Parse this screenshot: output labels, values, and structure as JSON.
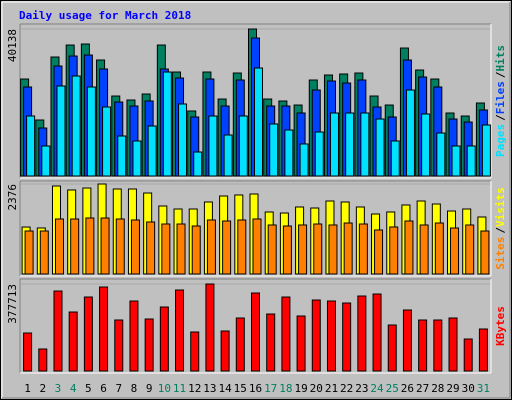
{
  "chart_data": [
    {
      "type": "bar",
      "title": "Daily usage for March 2018",
      "ylim": [
        0,
        40138
      ],
      "yticks": [
        40138
      ],
      "legend_separator": "/",
      "series": [
        {
          "name": "Hits",
          "color": "#008060",
          "values": [
            26480,
            15290,
            32490,
            35760,
            36040,
            31670,
            21840,
            20750,
            22390,
            35760,
            28390,
            17750,
            28390,
            21020,
            28120,
            40138,
            21020,
            20480,
            19380,
            26210,
            27570,
            27850,
            28120,
            21840,
            19380,
            34940,
            28940,
            26480,
            17200,
            16380,
            19930
          ]
        },
        {
          "name": "Files",
          "color": "#0040ff",
          "values": [
            24300,
            13100,
            30030,
            32760,
            33030,
            29210,
            20200,
            19110,
            20480,
            29210,
            26750,
            16110,
            26480,
            19110,
            26210,
            37670,
            19110,
            19110,
            17200,
            23480,
            25940,
            25390,
            26210,
            18840,
            16110,
            31670,
            27030,
            24300,
            15560,
            14740,
            18020
          ]
        },
        {
          "name": "Pages",
          "color": "#00e0ff",
          "values": [
            16380,
            8190,
            24570,
            27300,
            24300,
            18840,
            10920,
            9560,
            13650,
            28390,
            19660,
            6550,
            16380,
            11190,
            16380,
            29480,
            14200,
            12560,
            8740,
            12010,
            17200,
            17200,
            17200,
            15560,
            9560,
            23480,
            16930,
            11740,
            8190,
            8190,
            13920
          ]
        }
      ]
    },
    {
      "type": "bar",
      "ylim": [
        0,
        2376
      ],
      "yticks": [
        2376
      ],
      "legend_separator": "/",
      "series": [
        {
          "name": "Visits",
          "color": "#ffff00",
          "values": [
            1240,
            1215,
            2323,
            2218,
            2270,
            2376,
            2244,
            2244,
            2138,
            1795,
            1716,
            1716,
            1901,
            2059,
            2086,
            2112,
            1637,
            1610,
            1769,
            1742,
            1927,
            1901,
            1769,
            1584,
            1637,
            1822,
            1927,
            1848,
            1663,
            1716,
            1505
          ]
        },
        {
          "name": "Sites",
          "color": "#ff8000",
          "values": [
            1135,
            1135,
            1452,
            1452,
            1478,
            1478,
            1452,
            1426,
            1373,
            1320,
            1320,
            1267,
            1426,
            1399,
            1426,
            1452,
            1294,
            1267,
            1294,
            1320,
            1294,
            1346,
            1320,
            1162,
            1241,
            1399,
            1294,
            1346,
            1214,
            1294,
            1135
          ]
        }
      ]
    },
    {
      "type": "bar",
      "ylim": [
        0,
        377713
      ],
      "yticks": [
        377713
      ],
      "categories": [
        "1",
        "2",
        "3",
        "4",
        "5",
        "6",
        "7",
        "8",
        "9",
        "10",
        "11",
        "12",
        "13",
        "14",
        "15",
        "16",
        "17",
        "18",
        "19",
        "20",
        "21",
        "22",
        "23",
        "24",
        "25",
        "26",
        "27",
        "28",
        "29",
        "30",
        "31"
      ],
      "category_colors": [
        "#000000",
        "#000000",
        "#008060",
        "#008060",
        "#000000",
        "#000000",
        "#000000",
        "#000000",
        "#000000",
        "#008060",
        "#008060",
        "#000000",
        "#000000",
        "#000000",
        "#000000",
        "#000000",
        "#008060",
        "#008060",
        "#000000",
        "#000000",
        "#000000",
        "#000000",
        "#000000",
        "#008060",
        "#008060",
        "#000000",
        "#000000",
        "#000000",
        "#000000",
        "#000000",
        "#008060"
      ],
      "series": [
        {
          "name": "KBytes",
          "color": "#ff0000",
          "values": [
            164960,
            95500,
            347280,
            256120,
            321230,
            364640,
            221390,
            303870,
            225730,
            277820,
            351620,
            169300,
            377713,
            173640,
            230070,
            338600,
            247440,
            321230,
            238760,
            308210,
            303870,
            295190,
            325580,
            334260,
            199690,
            264800,
            221390,
            221390,
            230070,
            138910,
            182320
          ]
        }
      ]
    }
  ]
}
